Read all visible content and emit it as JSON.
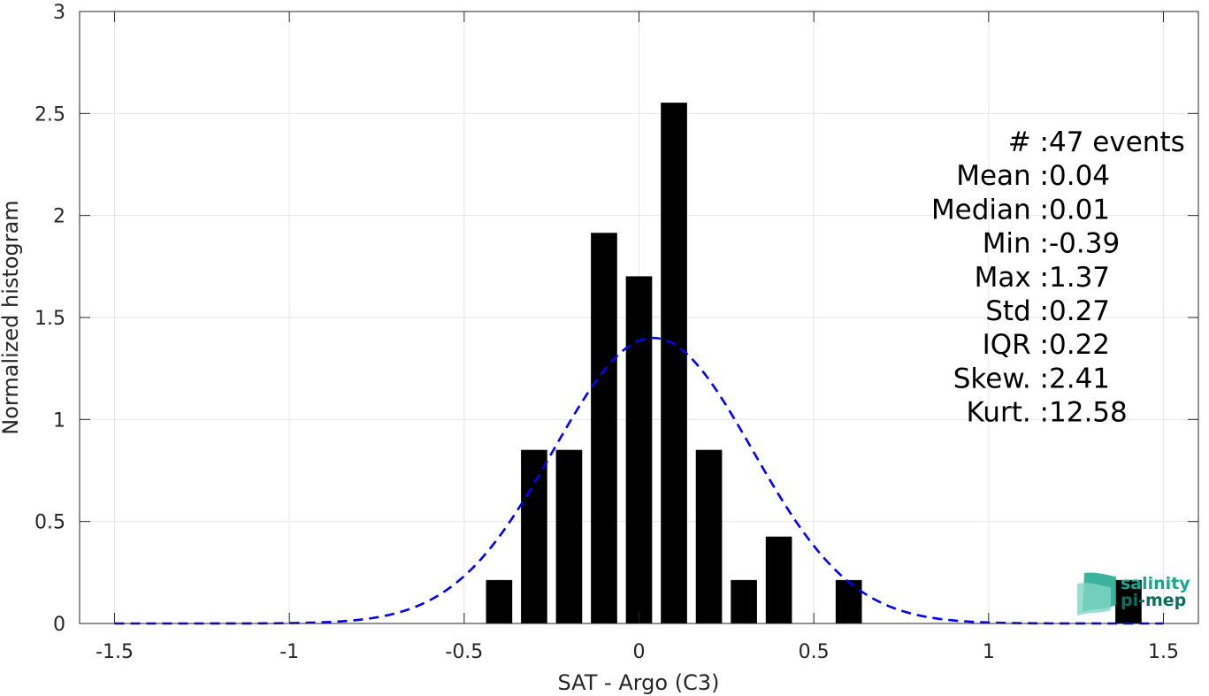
{
  "chart_data": {
    "type": "bar",
    "xlabel": "SAT - Argo (C3)",
    "ylabel": "Normalized histogram",
    "xlim": [
      -1.6,
      1.6
    ],
    "ylim": [
      0,
      3
    ],
    "grid": true,
    "x_ticks": [
      "-1.5",
      "-1",
      "-0.5",
      "0",
      "0.5",
      "1",
      "1.5"
    ],
    "x_tick_values": [
      -1.5,
      -1,
      -0.5,
      0,
      0.5,
      1,
      1.5
    ],
    "y_ticks": [
      "0",
      "0.5",
      "1",
      "1.5",
      "2",
      "2.5",
      "3"
    ],
    "y_tick_values": [
      0,
      0.5,
      1,
      1.5,
      2,
      2.5,
      3
    ],
    "bar_width": 0.075,
    "bars": [
      {
        "x": -0.4,
        "y": 0.213
      },
      {
        "x": -0.3,
        "y": 0.851
      },
      {
        "x": -0.2,
        "y": 0.851
      },
      {
        "x": -0.1,
        "y": 1.915
      },
      {
        "x": 0.0,
        "y": 1.702
      },
      {
        "x": 0.1,
        "y": 2.553
      },
      {
        "x": 0.2,
        "y": 0.851
      },
      {
        "x": 0.3,
        "y": 0.213
      },
      {
        "x": 0.4,
        "y": 0.426
      },
      {
        "x": 0.6,
        "y": 0.213
      },
      {
        "x": 1.4,
        "y": 0.213
      }
    ],
    "fit_curve": {
      "style": "dashed",
      "color": "#0000ff",
      "mean": 0.04,
      "std": 0.285,
      "peak": 1.4,
      "x_range": [
        -1.5,
        1.5
      ]
    },
    "bar_color": "#000000",
    "annotation_lines": [
      "#  : 47 events",
      "Mean : 0.04",
      "Median : 0.01",
      "Min : -0.39",
      "Max : 1.37",
      "Std : 0.27",
      "IQR : 0.22",
      "Skew. : 2.41",
      "Kurt. : 12.58"
    ]
  },
  "logo": {
    "line1": "salinity",
    "line2": "pi-mep",
    "color": "#1aa58c"
  }
}
